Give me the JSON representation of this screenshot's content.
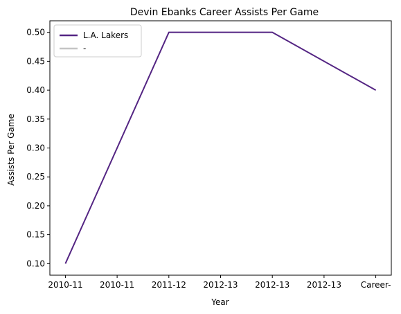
{
  "chart_data": {
    "type": "line",
    "title": "Devin Ebanks Career Assists Per Game",
    "xlabel": "Year",
    "ylabel": "Assists Per Game",
    "categories": [
      "2010-11",
      "2010-11",
      "2011-12",
      "2012-13",
      "2012-13",
      "2012-13",
      "Career-"
    ],
    "x_positions": [
      0,
      1,
      2,
      3,
      4,
      5,
      6
    ],
    "ylim": [
      0.08,
      0.52
    ],
    "yticks": [
      0.1,
      0.15,
      0.2,
      0.25,
      0.3,
      0.35,
      0.4,
      0.45,
      0.5
    ],
    "ytick_labels": [
      "0.10",
      "0.15",
      "0.20",
      "0.25",
      "0.30",
      "0.35",
      "0.40",
      "0.45",
      "0.50"
    ],
    "grid": false,
    "legend_position": "top-left",
    "series": [
      {
        "name": "L.A. Lakers",
        "color": "#542583",
        "points": [
          {
            "x": 0,
            "y": 0.1
          },
          {
            "x": 2,
            "y": 0.5
          },
          {
            "x": 4,
            "y": 0.5
          },
          {
            "x": 6,
            "y": 0.4
          }
        ]
      },
      {
        "name": "-",
        "color": "#c4c4c4",
        "points": []
      }
    ]
  }
}
